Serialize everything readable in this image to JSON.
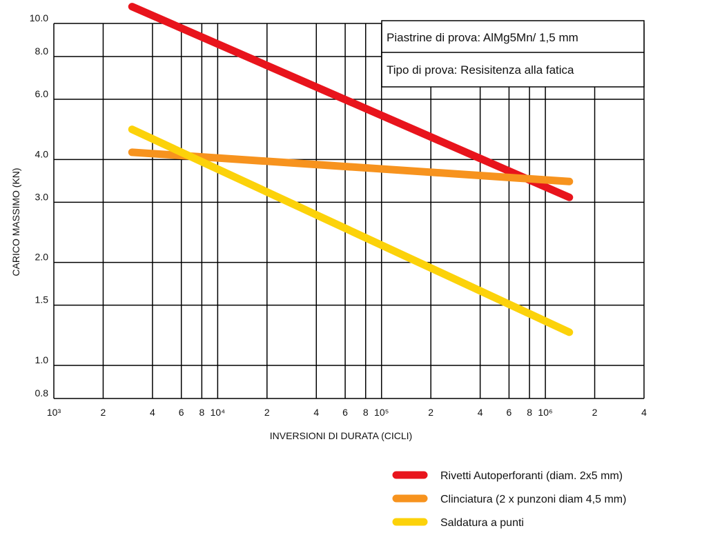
{
  "chart_data": {
    "type": "line",
    "x_scale": "log",
    "y_scale": "log",
    "xlabel": "INVERSIONI DI DURATA (CICLI)",
    "ylabel": "CARICO MASSIMO (KN)",
    "xlim": [
      1000,
      4000000
    ],
    "ylim": [
      0.8,
      10.0
    ],
    "grid": true,
    "y_ticks": [
      {
        "value": 10.0,
        "label": "10.0"
      },
      {
        "value": 8.0,
        "label": "8.0"
      },
      {
        "value": 6.0,
        "label": "6.0"
      },
      {
        "value": 4.0,
        "label": "4.0"
      },
      {
        "value": 3.0,
        "label": "3.0"
      },
      {
        "value": 2.0,
        "label": "2.0"
      },
      {
        "value": 1.5,
        "label": "1.5"
      },
      {
        "value": 1.0,
        "label": "1.0"
      },
      {
        "value": 0.8,
        "label": "0.8"
      }
    ],
    "x_ticks": [
      {
        "value": 1000,
        "label": "10³"
      },
      {
        "value": 2000,
        "label": "2"
      },
      {
        "value": 4000,
        "label": "4"
      },
      {
        "value": 6000,
        "label": "6"
      },
      {
        "value": 8000,
        "label": "8"
      },
      {
        "value": 10000,
        "label": "10⁴"
      },
      {
        "value": 20000,
        "label": "2"
      },
      {
        "value": 40000,
        "label": "4"
      },
      {
        "value": 60000,
        "label": "6"
      },
      {
        "value": 80000,
        "label": "8"
      },
      {
        "value": 100000,
        "label": "10⁵"
      },
      {
        "value": 200000,
        "label": "2"
      },
      {
        "value": 400000,
        "label": "4"
      },
      {
        "value": 600000,
        "label": "6"
      },
      {
        "value": 800000,
        "label": "8"
      },
      {
        "value": 1000000,
        "label": "10⁶"
      },
      {
        "value": 2000000,
        "label": "2"
      },
      {
        "value": 4000000,
        "label": "4"
      }
    ],
    "annotations": [
      "Piastrine di prova: AlMg5Mn/ 1,5 mm",
      "Tipo di prova: Resisitenza alla fatica"
    ],
    "series": [
      {
        "name": "Rivetti Autoperforanti (diam. 2x5 mm)",
        "color": "#e8141c",
        "x": [
          3000,
          1400000
        ],
        "y": [
          11.2,
          3.1
        ]
      },
      {
        "name": "Clinciatura (2 x punzoni diam 4,5 mm)",
        "color": "#f7931e",
        "x": [
          3000,
          1400000
        ],
        "y": [
          4.2,
          3.45
        ]
      },
      {
        "name": "Saldatura a punti",
        "color": "#fcd20a",
        "x": [
          3000,
          1400000
        ],
        "y": [
          4.9,
          1.25
        ]
      }
    ],
    "legend_position": "bottom-right"
  }
}
